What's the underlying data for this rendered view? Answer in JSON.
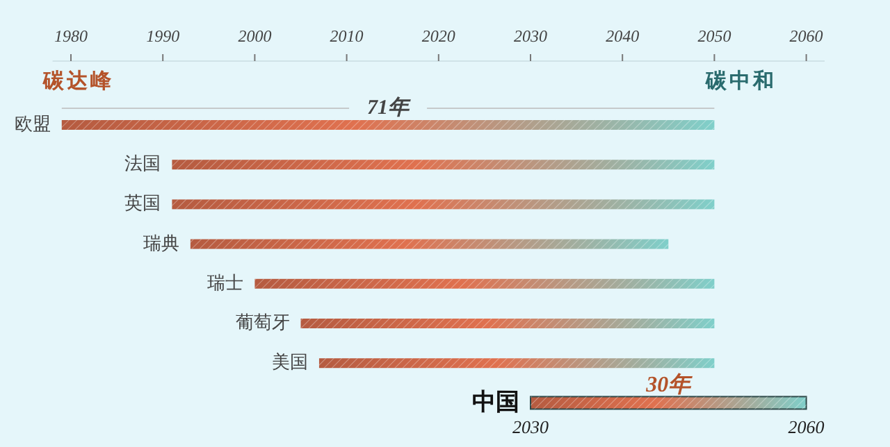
{
  "chart_data": {
    "type": "bar",
    "orientation": "horizontal",
    "categories": [
      "欧盟",
      "法国",
      "英国",
      "瑞典",
      "瑞士",
      "葡萄牙",
      "美国",
      "中国"
    ],
    "base": [
      1979,
      1991,
      1991,
      1993,
      2000,
      2005,
      2007,
      2030
    ],
    "values": [
      71,
      59,
      59,
      52,
      50,
      45,
      43,
      30
    ],
    "color": "#e0714f",
    "xlim": [
      1978,
      2062
    ],
    "xticks": [
      1980,
      1990,
      2000,
      2010,
      2020,
      2030,
      2040,
      2050,
      2060
    ],
    "annotations": [
      "碳达峰",
      "碳中和",
      {
        "text": "71年",
        "x": 2014.5,
        "y": "欧盟"
      },
      {
        "text": "30年",
        "x": 2045,
        "y": "中国"
      },
      {
        "text": "2030",
        "x": 2030,
        "y": "中国"
      },
      {
        "text": "2060",
        "x": 2060,
        "y": "中国"
      }
    ]
  }
}
